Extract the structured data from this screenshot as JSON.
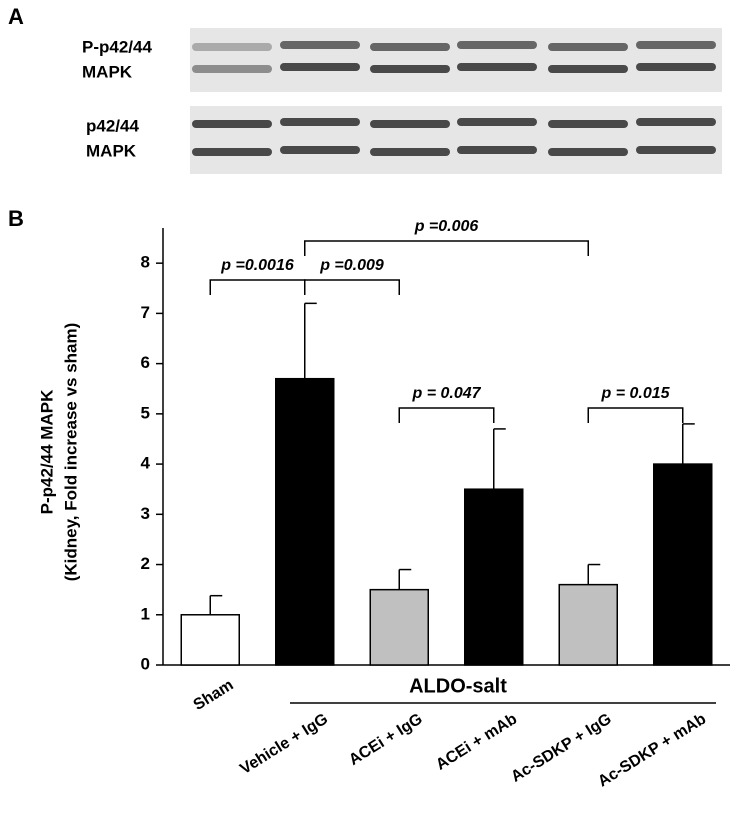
{
  "panels": {
    "a": "A",
    "b": "B"
  },
  "blot": {
    "labels": [
      "P-p42/44",
      "MAPK",
      "p42/44",
      "MAPK"
    ]
  },
  "chart_data": {
    "type": "bar",
    "ylabel": [
      "P-p42/44 MAPK",
      "(Kidney, Fold increase vs sham)"
    ],
    "categories": [
      "Sham",
      "Vehicle + IgG",
      "ACEi + IgG",
      "ACEi + mAb",
      "Ac-SDKP + IgG",
      "Ac-SDKP + mAb"
    ],
    "values": [
      1.0,
      5.7,
      1.5,
      3.5,
      1.6,
      4.0
    ],
    "errors": [
      0.38,
      1.5,
      0.4,
      1.2,
      0.4,
      0.8
    ],
    "colors": [
      "#ffffff",
      "#000000",
      "#c0c0c0",
      "#000000",
      "#c0c0c0",
      "#000000"
    ],
    "ylim": [
      0,
      8.7
    ],
    "yticks": [
      0,
      1,
      2,
      3,
      4,
      5,
      6,
      7,
      8
    ],
    "group_label": "ALDO-salt",
    "annotations": [
      "p =0.0016",
      "p =0.009",
      "p =0.006",
      "p = 0.047",
      "p = 0.015"
    ]
  }
}
